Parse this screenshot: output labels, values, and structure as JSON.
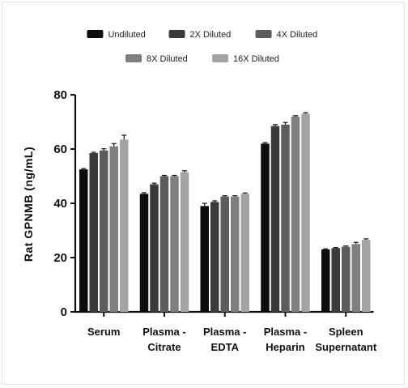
{
  "chart_data": {
    "type": "bar",
    "title": "",
    "xlabel": "",
    "ylabel": "Rat GPNMB (ng/mL)",
    "ylim": [
      0,
      80
    ],
    "yticks": [
      0,
      20,
      40,
      60,
      80
    ],
    "grid": false,
    "legend_position": "top",
    "categories": [
      [
        "Serum"
      ],
      [
        "Plasma -",
        "Citrate"
      ],
      [
        "Plasma -",
        "EDTA"
      ],
      [
        "Plasma -",
        "Heparin"
      ],
      [
        "Spleen",
        "Supernatant"
      ]
    ],
    "series": [
      {
        "name": "Undiluted",
        "color": "#0d0d0d",
        "values": [
          52.5,
          43.5,
          39.0,
          62.0,
          23.0
        ],
        "errors": [
          0.3,
          0.4,
          1.0,
          0.4,
          0.2
        ]
      },
      {
        "name": "2X Diluted",
        "color": "#3a3a3a",
        "values": [
          58.5,
          47.0,
          40.5,
          68.5,
          23.5
        ],
        "errors": [
          0.3,
          0.4,
          0.4,
          0.5,
          0.2
        ]
      },
      {
        "name": "4X Diluted",
        "color": "#5c5c5c",
        "values": [
          59.5,
          50.0,
          42.5,
          69.0,
          24.0
        ],
        "errors": [
          0.6,
          0.3,
          0.3,
          0.8,
          0.3
        ]
      },
      {
        "name": "8X Diluted",
        "color": "#7f7f7f",
        "values": [
          61.0,
          50.0,
          42.5,
          72.0,
          25.0
        ],
        "errors": [
          1.0,
          0.3,
          0.3,
          0.3,
          0.6
        ]
      },
      {
        "name": "16X Diluted",
        "color": "#a3a3a3",
        "values": [
          63.5,
          51.5,
          43.5,
          73.0,
          26.5
        ],
        "errors": [
          1.6,
          0.5,
          0.3,
          0.4,
          0.4
        ]
      }
    ]
  }
}
